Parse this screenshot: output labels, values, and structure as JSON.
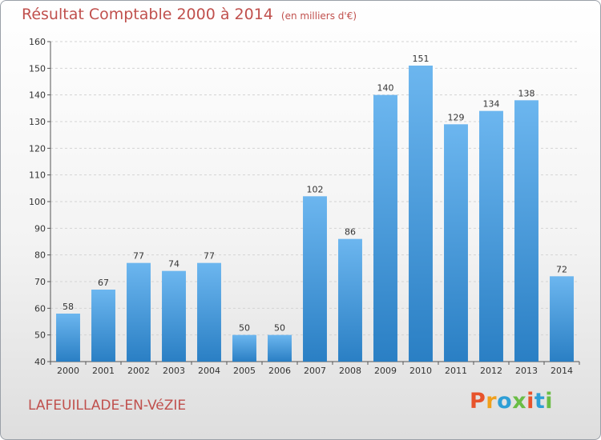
{
  "title": "Résultat Comptable 2000 à 2014",
  "subtitle": "(en milliers d'€)",
  "commune": "LAFEUILLADE-EN-VéZIE",
  "logo": {
    "letters": [
      "P",
      "r",
      "o",
      "x",
      "i",
      "t",
      "i"
    ],
    "colors": [
      "#e7532b",
      "#f0a01c",
      "#2e9fd6",
      "#6abd45",
      "#e7532b",
      "#2e9fd6",
      "#6abd45"
    ]
  },
  "colors": {
    "bar_light": "#6cb6ef",
    "bar_dark": "#2a7fc4",
    "title": "#c0504d"
  },
  "chart_data": {
    "type": "bar",
    "categories": [
      "2000",
      "2001",
      "2002",
      "2003",
      "2004",
      "2005",
      "2006",
      "2007",
      "2008",
      "2009",
      "2010",
      "2011",
      "2012",
      "2013",
      "2014"
    ],
    "values": [
      58,
      67,
      77,
      74,
      77,
      50,
      50,
      102,
      86,
      140,
      151,
      129,
      134,
      138,
      72
    ],
    "ylim": [
      40,
      160
    ],
    "yticks": [
      40,
      50,
      60,
      70,
      80,
      90,
      100,
      110,
      120,
      130,
      140,
      150,
      160
    ],
    "grid": true
  }
}
